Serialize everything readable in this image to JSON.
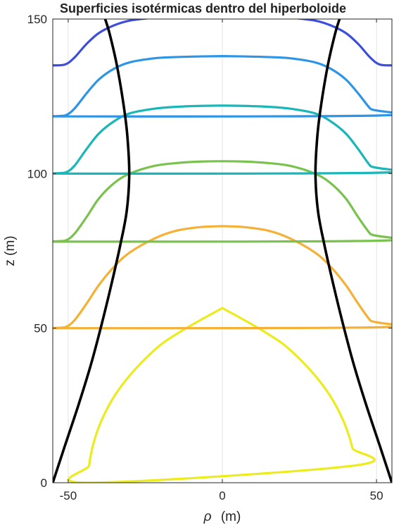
{
  "chart_data": {
    "type": "line",
    "title": "Superficies isotérmicas dentro del hiperboloide",
    "xlabel_symbol": "ρ",
    "xlabel_unit": "(m)",
    "ylabel": "z (m)",
    "xlim": [
      -55,
      55
    ],
    "ylim": [
      0,
      150
    ],
    "xticks": [
      -50,
      0,
      50
    ],
    "yticks": [
      0,
      50,
      100,
      150
    ],
    "xtick_labels": [
      "-50",
      "0",
      "50"
    ],
    "ytick_labels": [
      "0",
      "50",
      "100",
      "150"
    ],
    "grid": true,
    "hyperboloid": {
      "color": "#000000",
      "x": [
        55,
        51.05,
        46.71,
        42.69,
        39.21,
        36.02,
        33.08,
        31.0,
        30.2,
        30.8,
        32.0,
        34.2,
        36.5,
        38.0
      ],
      "y": [
        0,
        12,
        25,
        38,
        51,
        64,
        77,
        88,
        100,
        112,
        122,
        135,
        145,
        150
      ]
    },
    "isotherms": [
      {
        "color": "#ecec1c",
        "x": [
          43.5,
          43.2,
          42.2,
          40.5,
          38.1,
          34.9,
          30.8,
          25.7,
          19.4,
          10.5,
          0
        ],
        "y": [
          0,
          5.6,
          11.2,
          16.9,
          22.5,
          28.2,
          33.8,
          39.4,
          45.1,
          50.7,
          56.5
        ]
      },
      {
        "color": "#f4b135",
        "x": [
          55,
          51,
          48,
          44,
          40,
          35,
          30,
          22,
          15,
          7,
          0
        ],
        "y": [
          50,
          50.3,
          52.5,
          58,
          64,
          70,
          74.5,
          79,
          81.5,
          82.7,
          83
        ]
      },
      {
        "color": "#78c24d",
        "x": [
          55,
          51,
          48,
          44,
          40,
          35,
          30,
          22,
          15,
          7,
          0
        ],
        "y": [
          78,
          78.3,
          80.5,
          86,
          92,
          97,
          100,
          102.5,
          103.4,
          103.9,
          104
        ]
      },
      {
        "color": "#1bb6b8",
        "x": [
          55,
          51,
          48,
          44,
          40,
          35,
          30,
          22,
          15,
          7,
          0
        ],
        "y": [
          100,
          100.3,
          102.5,
          108,
          113,
          117,
          119.5,
          121,
          121.6,
          121.9,
          122
        ]
      },
      {
        "color": "#2e95e6",
        "x": [
          55,
          51,
          48,
          44,
          40,
          35,
          30,
          22,
          15,
          7,
          0
        ],
        "y": [
          118.5,
          118.8,
          121,
          126,
          130.5,
          134,
          136,
          137.3,
          137.7,
          137.9,
          138
        ]
      },
      {
        "color": "#3d4fda",
        "x": [
          55,
          51,
          48,
          44,
          40,
          35,
          30,
          22,
          19
        ],
        "y": [
          135,
          135.3,
          137.5,
          142,
          145.5,
          148,
          149.5,
          150.5,
          151
        ]
      }
    ]
  }
}
